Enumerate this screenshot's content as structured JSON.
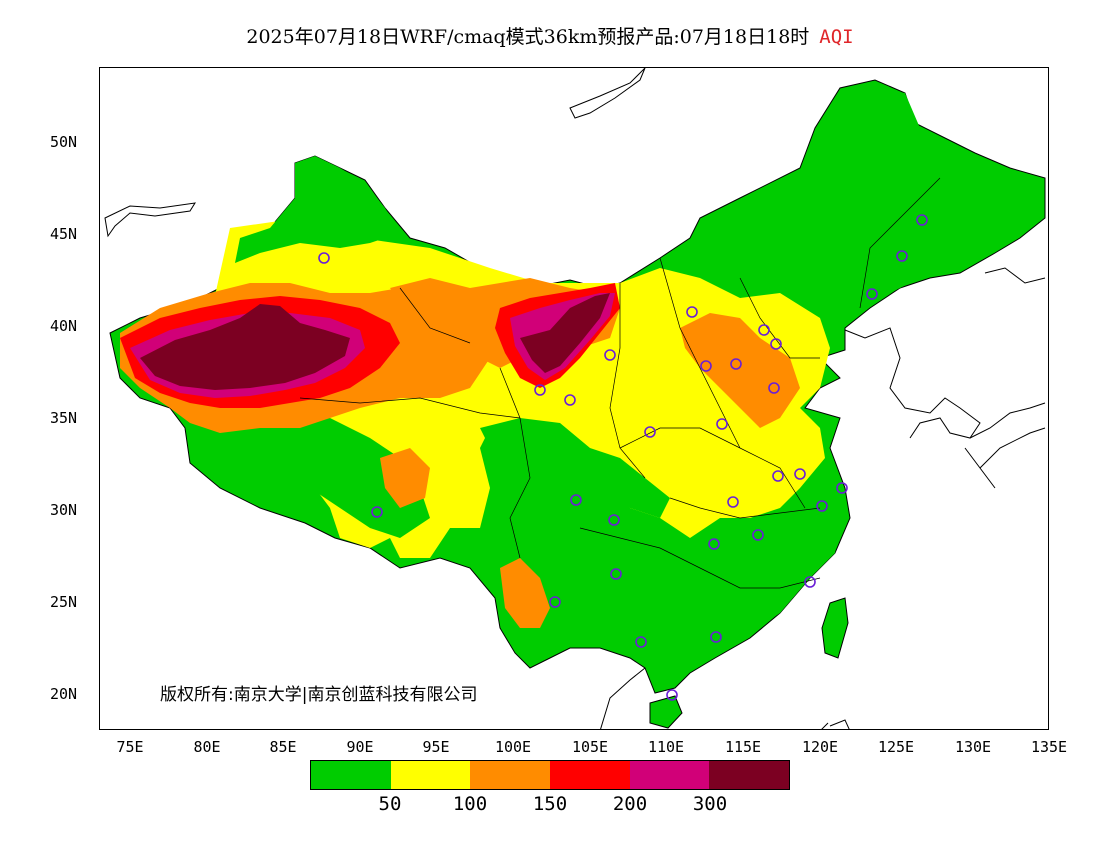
{
  "title": {
    "main": "2025年07月18日WRF/cmaq模式36km预报产品:07月18日18时",
    "variable": "AQI"
  },
  "copyright": "版权所有:南京大学|南京创蓝科技有限公司",
  "axes": {
    "lat_ticks": [
      "50N",
      "45N",
      "40N",
      "35N",
      "30N",
      "25N",
      "20N"
    ],
    "lon_ticks": [
      "75E",
      "80E",
      "85E",
      "90E",
      "95E",
      "100E",
      "105E",
      "110E",
      "115E",
      "120E",
      "125E",
      "130E",
      "135E"
    ]
  },
  "legend": {
    "colors": [
      "#00cc00",
      "#ffff00",
      "#ff8c00",
      "#ff0000",
      "#d10078",
      "#7c0022"
    ],
    "labels": [
      "50",
      "100",
      "150",
      "200",
      "300"
    ]
  },
  "colors": {
    "good": "#00cc00",
    "moderate": "#ffff00",
    "unhealthy_sensitive": "#ff8c00",
    "unhealthy": "#ff0000",
    "very_unhealthy": "#d10078",
    "hazardous": "#7c0022",
    "station_marker": "#6a1fd6"
  }
}
